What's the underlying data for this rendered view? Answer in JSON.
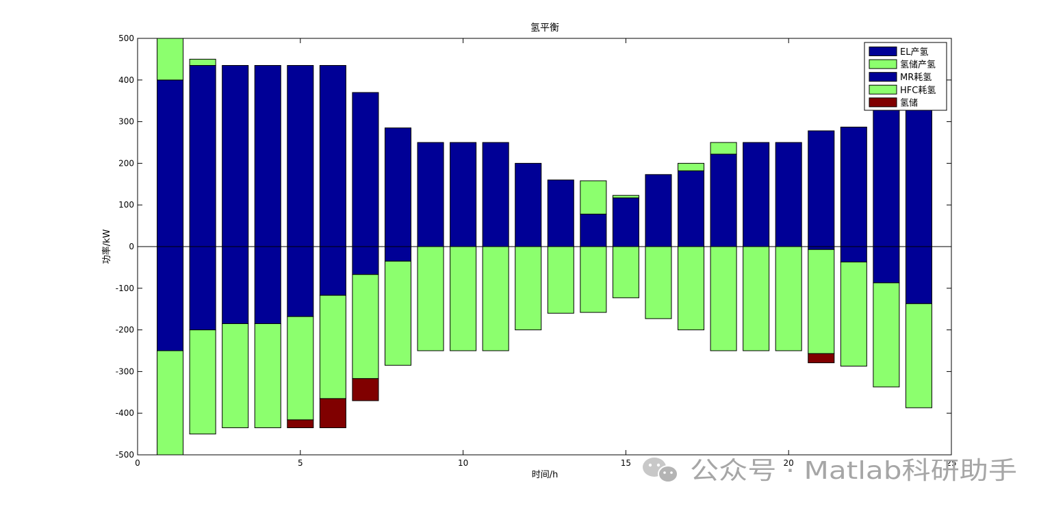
{
  "chart_data": {
    "type": "bar",
    "title": "氢平衡",
    "xlabel": "时间/h",
    "ylabel": "功率/kW",
    "xlim": [
      0,
      25
    ],
    "ylim": [
      -500,
      500
    ],
    "xticks": [
      0,
      5,
      10,
      15,
      20,
      25
    ],
    "yticks": [
      -500,
      -400,
      -300,
      -200,
      -100,
      0,
      100,
      200,
      300,
      400,
      500
    ],
    "grid": false,
    "stacked": true,
    "legend_position": "top-right",
    "categories": [
      1,
      2,
      3,
      4,
      5,
      6,
      7,
      8,
      9,
      10,
      11,
      12,
      13,
      14,
      15,
      16,
      17,
      18,
      19,
      20,
      21,
      22,
      23,
      24
    ],
    "series": [
      {
        "name": "EL产氢",
        "color": "#000096",
        "values": [
          400,
          435,
          435,
          435,
          435,
          435,
          370,
          285,
          250,
          250,
          250,
          200,
          160,
          78,
          117,
          173,
          182,
          222,
          250,
          250,
          278,
          287,
          335,
          390
        ]
      },
      {
        "name": "氢储产氢",
        "color": "#8cff6e",
        "values": [
          100,
          15,
          0,
          0,
          0,
          0,
          0,
          0,
          0,
          0,
          0,
          0,
          0,
          80,
          6,
          0,
          18,
          28,
          0,
          0,
          0,
          0,
          0,
          0
        ]
      },
      {
        "name": "MR耗氢",
        "color": "#000096",
        "values": [
          -250,
          -200,
          -185,
          -185,
          -168,
          -117,
          -67,
          -35,
          0,
          0,
          0,
          0,
          0,
          0,
          0,
          0,
          0,
          0,
          0,
          0,
          -7,
          -37,
          -87,
          -137
        ]
      },
      {
        "name": "HFC耗氢",
        "color": "#8cff6e",
        "values": [
          -250,
          -250,
          -250,
          -250,
          -248,
          -248,
          -250,
          -250,
          -250,
          -250,
          -250,
          -200,
          -160,
          -158,
          -123,
          -173,
          -200,
          -250,
          -250,
          -250,
          -250,
          -250,
          -250,
          -250
        ]
      },
      {
        "name": "氢储",
        "color": "#800000",
        "values": [
          0,
          0,
          0,
          0,
          -19,
          -70,
          -53,
          0,
          0,
          0,
          0,
          0,
          0,
          0,
          0,
          0,
          0,
          0,
          0,
          0,
          -22,
          0,
          0,
          0
        ]
      }
    ]
  },
  "watermark": {
    "text": "公众号 · Matlab科研助手",
    "icon": "wechat-icon",
    "color": "#a6a6a6"
  }
}
